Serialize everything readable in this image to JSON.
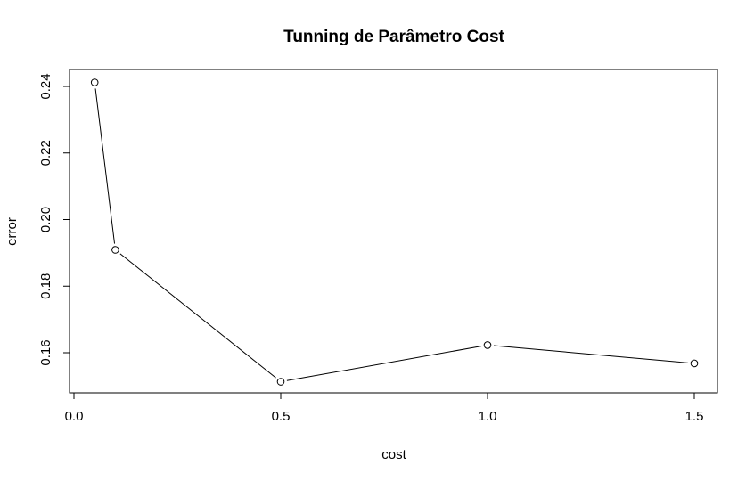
{
  "chart_data": {
    "type": "line",
    "title": "Tunning de Parâmetro Cost",
    "xlabel": "cost",
    "ylabel": "error",
    "xlim": [
      0.0,
      1.55
    ],
    "ylim": [
      0.148,
      0.244
    ],
    "xticks": [
      0.0,
      0.5,
      1.0,
      1.5
    ],
    "xtick_labels": [
      "0.0",
      "0.5",
      "1.0",
      "1.5"
    ],
    "yticks": [
      0.16,
      0.18,
      0.2,
      0.22,
      0.24
    ],
    "ytick_labels": [
      "0.16",
      "0.18",
      "0.20",
      "0.22",
      "0.24"
    ],
    "grid": false,
    "marker": "open-circle",
    "line_color": "#000000",
    "series": [
      {
        "x": [
          0.05,
          0.1,
          0.5,
          1.0,
          1.5
        ],
        "y": [
          0.2412,
          0.1909,
          0.1513,
          0.1623,
          0.1568
        ]
      }
    ]
  }
}
